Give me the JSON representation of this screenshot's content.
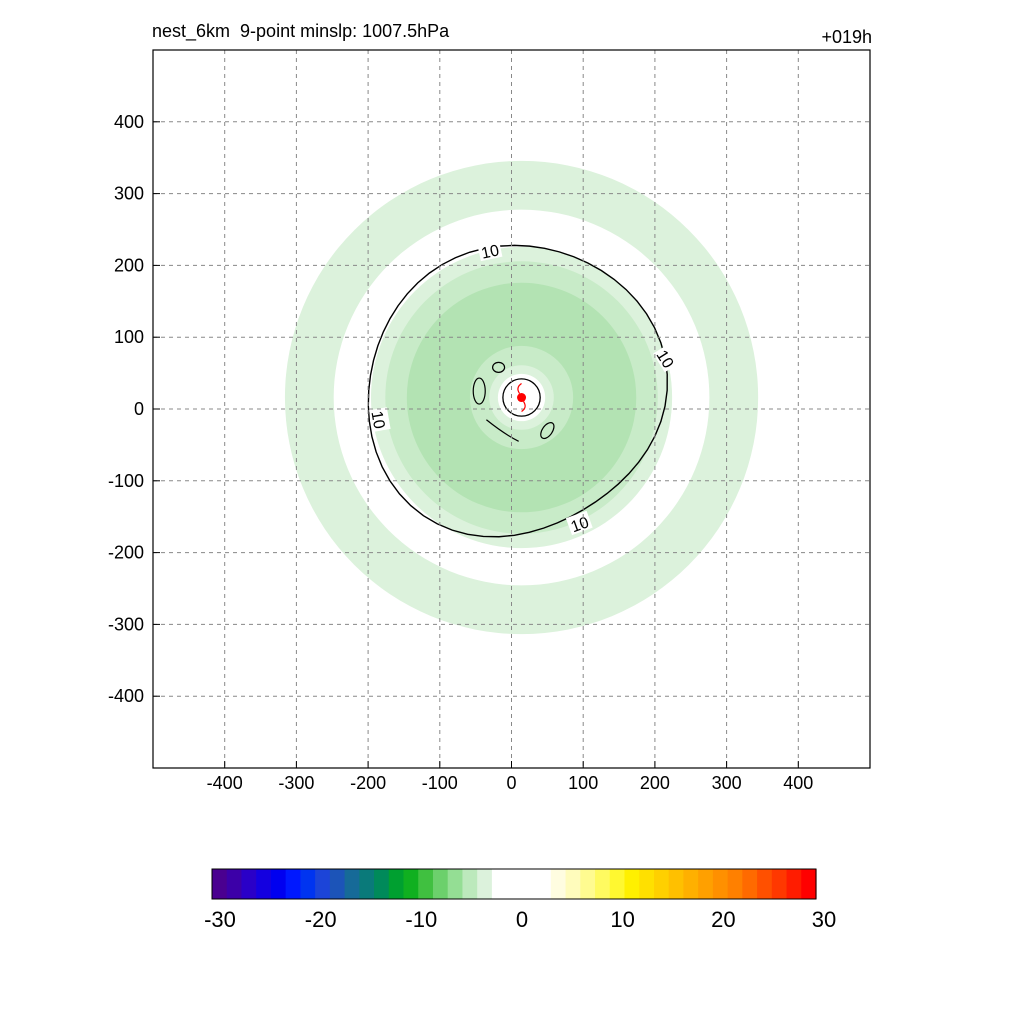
{
  "title_left": "nest_6km  9-point minslp: 1007.5hPa",
  "title_right": "+019h",
  "chart_data": {
    "type": "heatmap",
    "title": "nest_6km  9-point minslp: 1007.5hPa",
    "subtitle": "+019h",
    "xlabel": "",
    "ylabel": "",
    "xlim": [
      -500,
      500
    ],
    "ylim": [
      -500,
      500
    ],
    "x_ticks": [
      -400,
      -300,
      -200,
      -100,
      0,
      100,
      200,
      300,
      400
    ],
    "y_ticks": [
      400,
      300,
      200,
      100,
      0,
      -100,
      -200,
      -300,
      -400
    ],
    "grid": true,
    "storm_center": [
      14,
      16
    ],
    "shaded_rings": [
      {
        "r_inner": 262,
        "r_outer": 330,
        "value": -5,
        "color": "#dcf2dc"
      },
      {
        "r_inner": 33,
        "r_outer": 210,
        "value": -5,
        "color": "#dcf2dc"
      },
      {
        "r_inner": 45,
        "r_outer": 190,
        "value": -7,
        "color": "#c8ebc8"
      },
      {
        "r_inner": 72,
        "r_outer": 160,
        "value": -9,
        "color": "#b3e3b3"
      }
    ],
    "contour": {
      "level": 10,
      "label": "10",
      "color": "#000000"
    },
    "colorbar": {
      "min": -30,
      "max": 30,
      "ticks": [
        -30,
        -20,
        -10,
        0,
        10,
        20,
        30
      ],
      "colors": [
        "#4a0090",
        "#3c00a8",
        "#2a00c8",
        "#1400e0",
        "#0000f0",
        "#0018ff",
        "#0034f0",
        "#1c44d8",
        "#1c54b8",
        "#166a98",
        "#0a7a7a",
        "#008a5a",
        "#00a030",
        "#10b020",
        "#40c040",
        "#6cd06c",
        "#94de94",
        "#bce9bc",
        "#dcf2dc",
        "#ffffff",
        "#ffffff",
        "#ffffff",
        "#ffffff",
        "#fffde0",
        "#fffcbc",
        "#fffb90",
        "#fffa60",
        "#fff830",
        "#fff000",
        "#ffe000",
        "#ffd000",
        "#ffc000",
        "#ffb000",
        "#ffa000",
        "#ff9000",
        "#ff8000",
        "#ff6a00",
        "#ff5000",
        "#ff3800",
        "#ff1c00",
        "#ff0000"
      ]
    }
  }
}
